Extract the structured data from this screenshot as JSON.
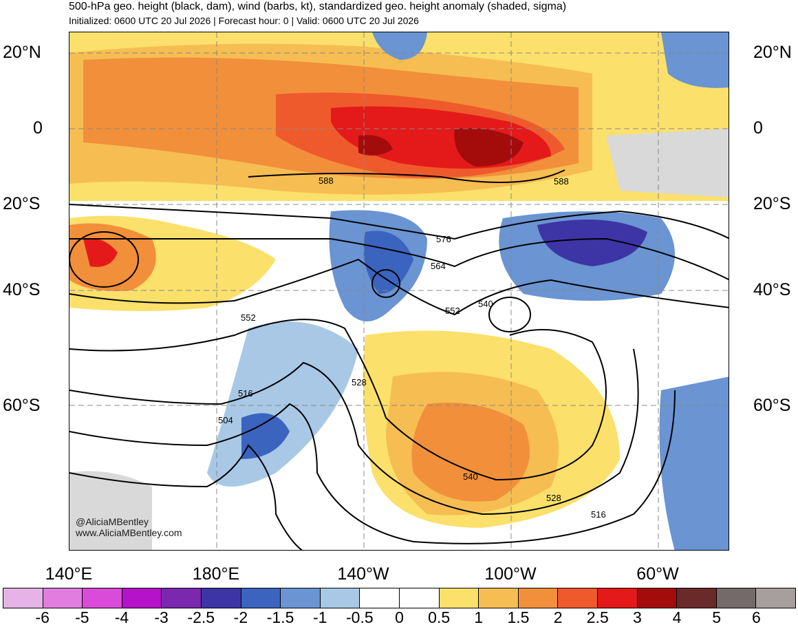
{
  "header": {
    "title": "500-hPa geo. height (black, dam), wind (barbs, kt), standardized geo. height anomaly (shaded, sigma)",
    "subtitle": "Initialized: 0600 UTC 20 Jul 2026 | Forecast hour: 0 | Valid: 0600 UTC 20 Jul 2026"
  },
  "map": {
    "lat_labels": [
      "20°N",
      "0",
      "20°S",
      "40°S",
      "60°S"
    ],
    "lon_labels": [
      "140°E",
      "180°E",
      "140°W",
      "100°W",
      "60°W"
    ],
    "contour_labels": [
      "588",
      "588",
      "576",
      "564",
      "552",
      "552",
      "540",
      "540",
      "528",
      "528",
      "516",
      "516",
      "504"
    ],
    "credit": [
      "@AliciaMBentley",
      "www.AliciaMBentley.com"
    ]
  },
  "colorbar": {
    "colors": [
      "#e6b3e6",
      "#e27de0",
      "#d94bd8",
      "#b512c9",
      "#7a28ad",
      "#3d35a5",
      "#3b64bf",
      "#6a94d2",
      "#a8c8e6",
      "#ffffff",
      "#ffffff",
      "#fbe06b",
      "#f6bd52",
      "#f28f3a",
      "#ef5a2c",
      "#e41a1a",
      "#a40c0c",
      "#6b2a2a",
      "#736a69",
      "#a79e9e"
    ],
    "labels": [
      "-6",
      "-5",
      "-4",
      "-3",
      "-2.5",
      "-2",
      "-1.5",
      "-1",
      "-0.5",
      "0",
      "0.5",
      "1",
      "1.5",
      "2",
      "2.5",
      "3",
      "4",
      "5",
      "6"
    ]
  }
}
